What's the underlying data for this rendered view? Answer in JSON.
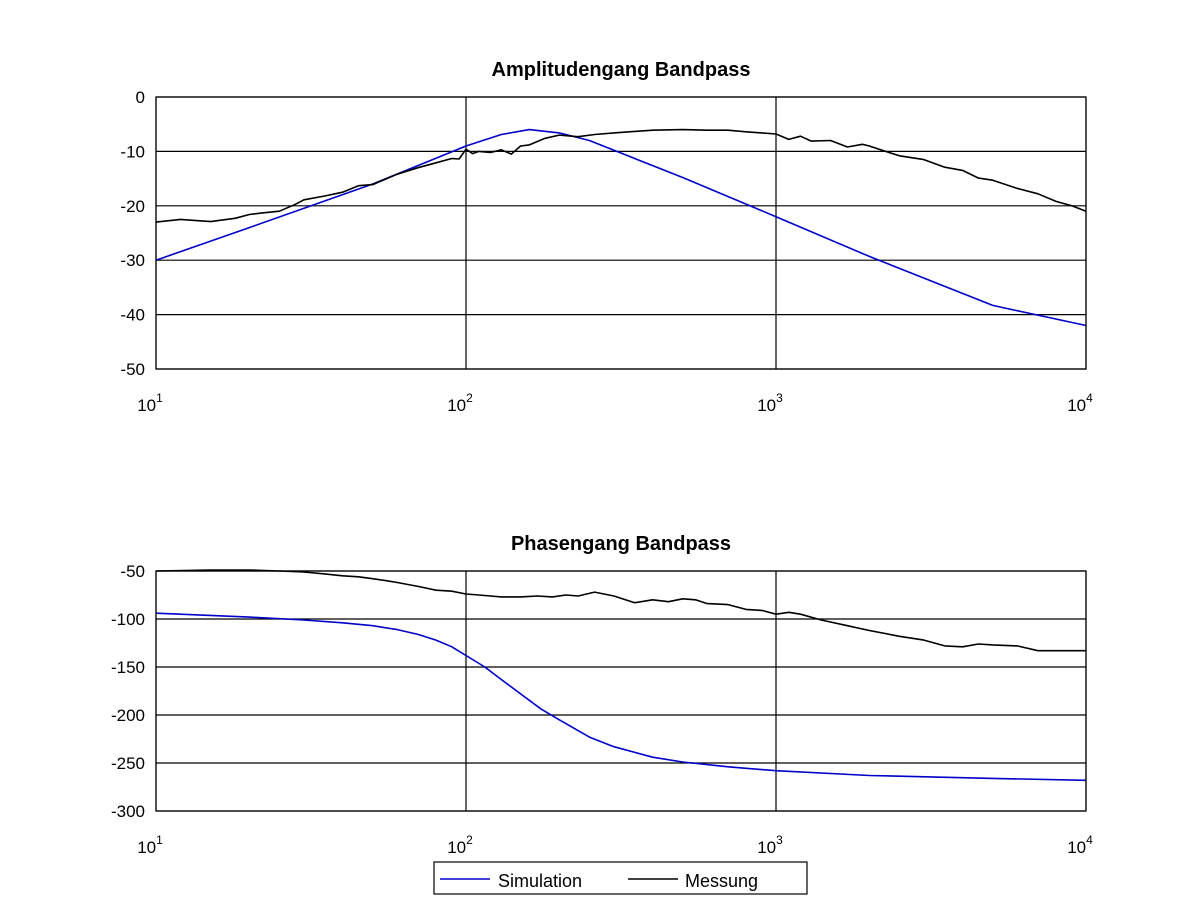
{
  "colors": {
    "simulation": "#0000c8",
    "messung": "#000000",
    "grid": "#000000",
    "background": "#ffffff"
  },
  "legend": {
    "placement": "bottom-center",
    "entries": [
      {
        "label": "Simulation",
        "color": "#0000c8"
      },
      {
        "label": "Messung",
        "color": "#000000"
      }
    ]
  },
  "chart_data": [
    {
      "type": "line",
      "title": "Amplitudengang Bandpass",
      "xlabel": "",
      "ylabel": "",
      "xscale": "log",
      "xlim": [
        10,
        10000
      ],
      "ylim": [
        -50,
        0
      ],
      "grid": true,
      "x_ticks": [
        {
          "base": "10",
          "exp": "1",
          "value": 10
        },
        {
          "base": "10",
          "exp": "2",
          "value": 100
        },
        {
          "base": "10",
          "exp": "3",
          "value": 1000
        },
        {
          "base": "10",
          "exp": "4",
          "value": 10000
        }
      ],
      "y_ticks": [
        {
          "label": "0",
          "value": 0
        },
        {
          "label": "-10",
          "value": -10
        },
        {
          "label": "-20",
          "value": -20
        },
        {
          "label": "-30",
          "value": -30
        },
        {
          "label": "-40",
          "value": -40
        },
        {
          "label": "-50",
          "value": -50
        }
      ],
      "series": [
        {
          "name": "Simulation",
          "color": "#0000c8",
          "x": [
            10,
            20,
            50,
            100,
            130,
            160,
            200,
            250,
            500,
            1000,
            2000,
            5000,
            10000
          ],
          "y": [
            -30,
            -24,
            -16,
            -9,
            -6.9,
            -6,
            -6.6,
            -8,
            -14.8,
            -22,
            -29.3,
            -38.3,
            -42
          ]
        },
        {
          "name": "Messung",
          "color": "#000000",
          "x": [
            10,
            12,
            15,
            18,
            20,
            22,
            25,
            28,
            30,
            35,
            40,
            45,
            50,
            60,
            70,
            80,
            90,
            95,
            100,
            105,
            110,
            120,
            130,
            140,
            150,
            160,
            180,
            200,
            230,
            260,
            300,
            400,
            500,
            600,
            700,
            800,
            900,
            1000,
            1100,
            1200,
            1300,
            1500,
            1700,
            1900,
            2000,
            2200,
            2500,
            3000,
            3500,
            4000,
            4500,
            5000,
            6000,
            7000,
            8000,
            9000,
            10000
          ],
          "y": [
            -23,
            -22.5,
            -22.9,
            -22.3,
            -21.6,
            -21.3,
            -21,
            -19.8,
            -18.9,
            -18.2,
            -17.5,
            -16.3,
            -16.1,
            -14.2,
            -13,
            -12.1,
            -11.3,
            -11.4,
            -9.6,
            -10.4,
            -10,
            -10.2,
            -9.7,
            -10.5,
            -9,
            -8.8,
            -7.6,
            -7,
            -7.3,
            -6.9,
            -6.6,
            -6.1,
            -6,
            -6.1,
            -6.1,
            -6.4,
            -6.6,
            -6.8,
            -7.8,
            -7.2,
            -8.1,
            -8,
            -9.2,
            -8.7,
            -9,
            -9.8,
            -10.8,
            -11.5,
            -12.9,
            -13.5,
            -14.9,
            -15.3,
            -16.8,
            -17.8,
            -19.2,
            -20,
            -21
          ]
        }
      ]
    },
    {
      "type": "line",
      "title": "Phasengang Bandpass",
      "xlabel": "",
      "ylabel": "",
      "xscale": "log",
      "xlim": [
        10,
        10000
      ],
      "ylim": [
        -300,
        -50
      ],
      "grid": true,
      "x_ticks": [
        {
          "base": "10",
          "exp": "1",
          "value": 10
        },
        {
          "base": "10",
          "exp": "2",
          "value": 100
        },
        {
          "base": "10",
          "exp": "3",
          "value": 1000
        },
        {
          "base": "10",
          "exp": "4",
          "value": 10000
        }
      ],
      "y_ticks": [
        {
          "label": "-50",
          "value": -50
        },
        {
          "label": "-100",
          "value": -100
        },
        {
          "label": "-150",
          "value": -150
        },
        {
          "label": "-200",
          "value": -200
        },
        {
          "label": "-250",
          "value": -250
        },
        {
          "label": "-300",
          "value": -300
        }
      ],
      "series": [
        {
          "name": "Simulation",
          "color": "#0000c8",
          "x": [
            10,
            20,
            30,
            40,
            50,
            60,
            70,
            80,
            90,
            100,
            115,
            130,
            150,
            175,
            200,
            250,
            300,
            400,
            500,
            700,
            1000,
            2000,
            5000,
            10000
          ],
          "y": [
            -94,
            -98,
            -101,
            -104,
            -107,
            -111,
            -116,
            -122,
            -129,
            -138,
            -150,
            -163,
            -178,
            -194,
            -205,
            -223,
            -233,
            -244,
            -249,
            -254,
            -258,
            -263,
            -266,
            -268
          ]
        },
        {
          "name": "Messung",
          "color": "#000000",
          "x": [
            10,
            15,
            20,
            25,
            30,
            35,
            40,
            45,
            50,
            55,
            60,
            70,
            80,
            90,
            100,
            110,
            120,
            130,
            150,
            170,
            190,
            210,
            230,
            260,
            300,
            350,
            400,
            450,
            500,
            550,
            600,
            700,
            800,
            900,
            1000,
            1100,
            1200,
            1400,
            1700,
            2000,
            2500,
            3000,
            3500,
            4000,
            4500,
            5000,
            6000,
            7000,
            8000,
            10000
          ],
          "y": [
            -50,
            -49,
            -49,
            -50,
            -51,
            -53,
            -55,
            -56,
            -58,
            -60,
            -62,
            -66,
            -70,
            -71,
            -74,
            -75,
            -76,
            -77,
            -77,
            -76,
            -77,
            -75,
            -76,
            -72,
            -76,
            -83,
            -80,
            -82,
            -79,
            -80,
            -84,
            -85,
            -90,
            -91,
            -95,
            -93,
            -95,
            -101,
            -107,
            -112,
            -118,
            -122,
            -128,
            -129,
            -126,
            -127,
            -128,
            -133,
            -133,
            -133
          ]
        }
      ]
    }
  ]
}
